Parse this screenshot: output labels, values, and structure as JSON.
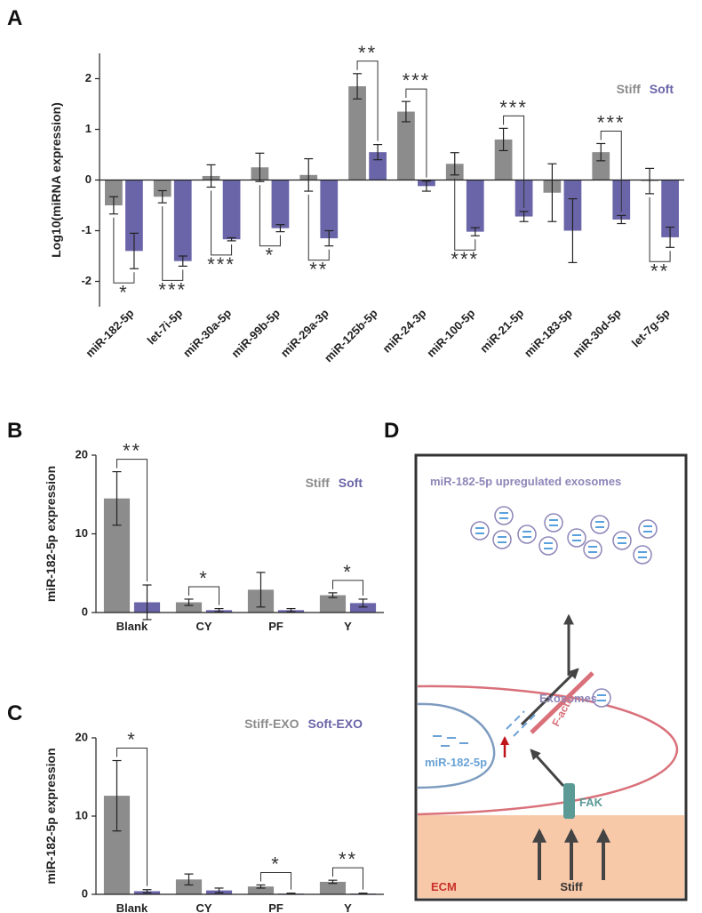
{
  "chart_data": [
    {
      "type": "bar",
      "panel_label": "A",
      "ylabel": "Log10(miRNA expression)",
      "categories": [
        "miR-182-5p",
        "let-7i-5p",
        "miR-30a-5p",
        "miR-99b-5p",
        "miR-29a-3p",
        "miR-125b-5p",
        "miR-24-3p",
        "miR-100-5p",
        "miR-21-5p",
        "miR-183-5p",
        "miR-30d-5p",
        "let-7g-5p"
      ],
      "series": [
        {
          "name": "Stiff",
          "color": "#8c8c8c",
          "values": [
            -0.5,
            -0.33,
            0.08,
            0.25,
            0.1,
            1.85,
            1.35,
            0.32,
            0.8,
            -0.25,
            0.55,
            -0.02
          ],
          "errors": [
            0.17,
            0.12,
            0.22,
            0.28,
            0.32,
            0.25,
            0.2,
            0.22,
            0.22,
            0.57,
            0.17,
            0.25
          ]
        },
        {
          "name": "Soft",
          "color": "#6a65a8",
          "values": [
            -1.4,
            -1.6,
            -1.17,
            -0.95,
            -1.15,
            0.55,
            -0.12,
            -1.02,
            -0.72,
            -1.0,
            -0.78,
            -1.13
          ],
          "errors": [
            0.35,
            0.1,
            0.03,
            0.07,
            0.15,
            0.15,
            0.1,
            0.08,
            0.1,
            0.63,
            0.08,
            0.2
          ]
        }
      ],
      "significance": [
        "*",
        "***",
        "***",
        "*",
        "**",
        "**",
        "***",
        "***",
        "***",
        null,
        "***",
        "**"
      ],
      "ylim": [
        -2.5,
        2.5
      ],
      "yticks": [
        -2,
        -1,
        0,
        1,
        2
      ],
      "legend": "upper right"
    },
    {
      "type": "bar",
      "panel_label": "B",
      "ylabel": "miR-182-5p expression",
      "categories": [
        "Blank",
        "CY",
        "PF",
        "Y"
      ],
      "series": [
        {
          "name": "Stiff",
          "color": "#8c8c8c",
          "values": [
            14.5,
            1.3,
            2.9,
            2.2
          ],
          "errors": [
            3.4,
            0.4,
            2.2,
            0.3
          ]
        },
        {
          "name": "Soft",
          "color": "#6a65a8",
          "values": [
            1.3,
            0.3,
            0.3,
            1.2
          ],
          "errors": [
            2.2,
            0.2,
            0.2,
            0.5
          ]
        }
      ],
      "significance": [
        "**",
        "*",
        null,
        "*"
      ],
      "ylim": [
        0,
        20
      ],
      "yticks": [
        0,
        10,
        20
      ],
      "legend": "upper right"
    },
    {
      "type": "bar",
      "panel_label": "C",
      "ylabel": "miR-182-5p expression",
      "categories": [
        "Blank",
        "CY",
        "PF",
        "Y"
      ],
      "series": [
        {
          "name": "Stiff-EXO",
          "color": "#8c8c8c",
          "values": [
            12.6,
            1.9,
            1.0,
            1.6
          ],
          "errors": [
            4.5,
            0.7,
            0.2,
            0.2
          ]
        },
        {
          "name": "Soft-EXO",
          "color": "#6a65a8",
          "values": [
            0.4,
            0.5,
            0.1,
            0.1
          ],
          "errors": [
            0.2,
            0.3,
            0.05,
            0.05
          ]
        }
      ],
      "significance": [
        "*",
        null,
        "*",
        "**"
      ],
      "ylim": [
        0,
        20
      ],
      "yticks": [
        0,
        10,
        20
      ],
      "legend": "upper right"
    }
  ],
  "diagram": {
    "panel_label": "D",
    "title": "miR-182-5p upregulated exosomes",
    "exosomes": "Exosomes",
    "factin": "F-actin",
    "mirna": "miR-182-5p",
    "fak": "FAK",
    "ecm": "ECM",
    "stiff": "Stiff"
  }
}
